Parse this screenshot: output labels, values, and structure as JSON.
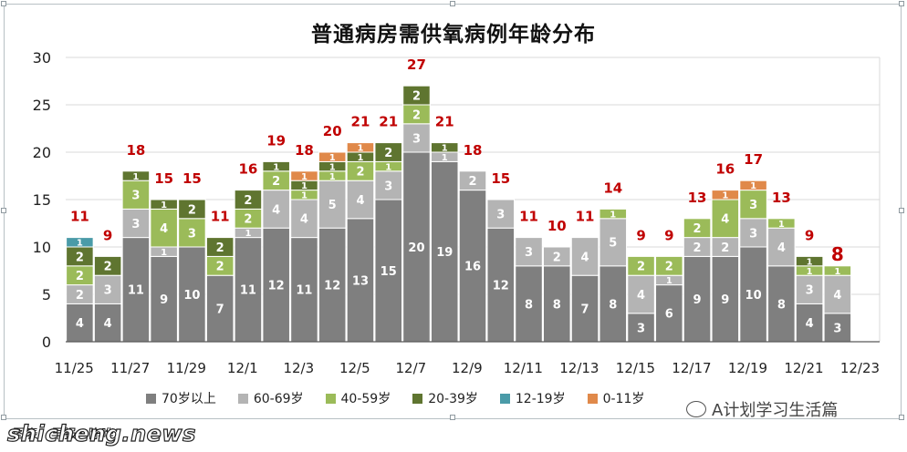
{
  "chart_data": {
    "type": "bar",
    "stacked": true,
    "title": "普通病房需供氧病例年龄分布",
    "categories": [
      "11/25",
      "11/26",
      "11/27",
      "11/28",
      "11/29",
      "11/30",
      "12/1",
      "12/2",
      "12/3",
      "12/4",
      "12/5",
      "12/6",
      "12/7",
      "12/8",
      "12/9",
      "12/10",
      "12/11",
      "12/12",
      "12/13",
      "12/14",
      "12/15",
      "12/16",
      "12/17",
      "12/18",
      "12/19",
      "12/20",
      "12/21",
      "12/22",
      "12/23"
    ],
    "x_tick_labels": [
      "11/25",
      "11/27",
      "11/29",
      "12/1",
      "12/3",
      "12/5",
      "12/7",
      "12/9",
      "12/11",
      "12/13",
      "12/15",
      "12/17",
      "12/19",
      "12/21",
      "12/23"
    ],
    "ylim": [
      0,
      30
    ],
    "y_ticks": [
      0,
      5,
      10,
      15,
      20,
      25,
      30
    ],
    "grid": true,
    "legend_position": "bottom",
    "series": [
      {
        "name": "70岁以上",
        "color": "#7f7f7f",
        "values": [
          4,
          4,
          11,
          9,
          10,
          7,
          11,
          12,
          11,
          12,
          13,
          15,
          20,
          19,
          16,
          12,
          8,
          8,
          7,
          8,
          3,
          6,
          9,
          9,
          10,
          8,
          4,
          3,
          0
        ]
      },
      {
        "name": "60-69岁",
        "color": "#b4b4b4",
        "values": [
          2,
          3,
          3,
          1,
          0,
          0,
          1,
          4,
          4,
          5,
          4,
          3,
          3,
          1,
          2,
          3,
          3,
          2,
          4,
          5,
          4,
          1,
          2,
          2,
          3,
          4,
          3,
          4,
          0
        ]
      },
      {
        "name": "40-59岁",
        "color": "#9bbb59",
        "values": [
          2,
          0,
          3,
          4,
          3,
          2,
          2,
          2,
          1,
          1,
          2,
          1,
          2,
          0,
          0,
          0,
          0,
          0,
          0,
          1,
          2,
          2,
          2,
          4,
          3,
          1,
          1,
          1,
          0
        ]
      },
      {
        "name": "20-39岁",
        "color": "#5f7530",
        "values": [
          2,
          2,
          1,
          1,
          2,
          2,
          2,
          1,
          1,
          1,
          1,
          2,
          2,
          1,
          0,
          0,
          0,
          0,
          0,
          0,
          0,
          0,
          0,
          0,
          0,
          0,
          1,
          0,
          0
        ]
      },
      {
        "name": "12-19岁",
        "color": "#4a9ba8",
        "values": [
          1,
          0,
          0,
          0,
          0,
          0,
          0,
          0,
          0,
          0,
          0,
          0,
          0,
          0,
          0,
          0,
          0,
          0,
          0,
          0,
          0,
          0,
          0,
          0,
          0,
          0,
          0,
          0,
          0
        ]
      },
      {
        "name": "0-11岁",
        "color": "#e0894a",
        "values": [
          0,
          0,
          0,
          0,
          0,
          0,
          0,
          0,
          1,
          1,
          1,
          0,
          0,
          0,
          0,
          0,
          0,
          0,
          0,
          0,
          0,
          0,
          0,
          1,
          1,
          0,
          0,
          0,
          0
        ]
      }
    ],
    "totals": [
      11,
      9,
      18,
      15,
      15,
      11,
      16,
      19,
      18,
      20,
      21,
      21,
      27,
      21,
      18,
      15,
      11,
      10,
      11,
      14,
      9,
      9,
      13,
      16,
      17,
      13,
      9,
      8,
      null
    ],
    "total_label_color": "#c00000",
    "highlight_last_total": true
  },
  "legend": {
    "items": [
      {
        "label": "70岁以上",
        "color": "#7f7f7f"
      },
      {
        "label": "60-69岁",
        "color": "#b4b4b4"
      },
      {
        "label": "40-59岁",
        "color": "#9bbb59"
      },
      {
        "label": "20-39岁",
        "color": "#5f7530"
      },
      {
        "label": "12-19岁",
        "color": "#4a9ba8"
      },
      {
        "label": "0-11岁",
        "color": "#e0894a"
      }
    ]
  },
  "watermark": "A计划学习生活篇",
  "source_text": "图表：早报•  陈晔",
  "site_text": "shicheng.news"
}
